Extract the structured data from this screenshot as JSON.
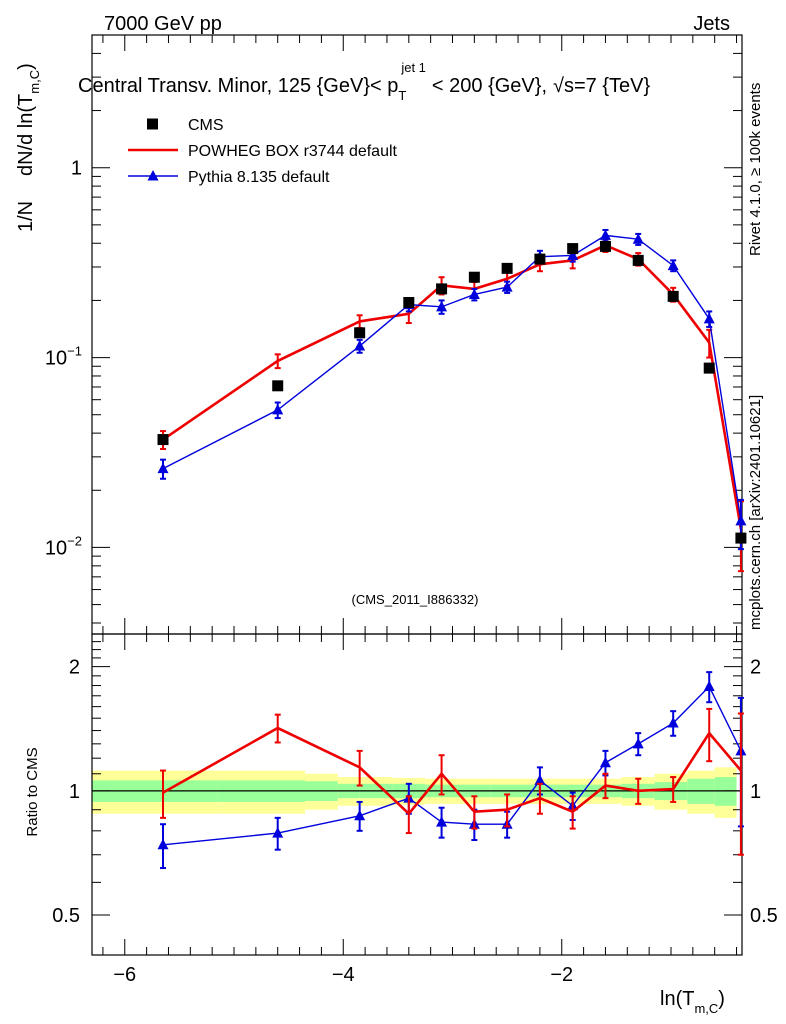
{
  "header": {
    "left": "7000 GeV pp",
    "right": "Jets",
    "title": "Central Transv. Minor, 125 {GeV}< p_T^{jet 1} < 200 {GeV}, √s=7 {TeV}",
    "title_parts": {
      "main_a": "Central Transv. Minor, 125 {GeV}< p",
      "sup": "jet 1",
      "sub": "T",
      "main_b": "< 200 {GeV},",
      "sqrt": "√",
      "main_c": "s=7 {TeV}"
    }
  },
  "side_labels": {
    "rivet": "Rivet 4.1.0, ≥ 100k events",
    "mcplots": "mcplots.cern.ch [arXiv:2401.10621]"
  },
  "watermark": "(CMS_2011_I886332)",
  "axis_labels": {
    "y_main_prefix": "1/N",
    "y_main_d": "dN/d ln(T",
    "y_main_sub": "m,C",
    "y_main_close": ")",
    "y_ratio": "Ratio to CMS",
    "x_main": "ln(T",
    "x_sub": "m,C",
    "x_close": ")"
  },
  "chart_data": [
    {
      "type": "scatter",
      "panel": "main",
      "yscale": "log",
      "xlim": [
        -6.3,
        -0.35
      ],
      "ylim": [
        0.0035,
        5.0
      ],
      "x_ticks": [
        -6,
        -4,
        -2
      ],
      "x_tick_labels": [
        "−6",
        "−4",
        "−2"
      ],
      "y_major_ticks": [
        0.01,
        0.1,
        1
      ],
      "y_tick_labels": [
        {
          "base": "10",
          "exp": "−2"
        },
        {
          "base": "10",
          "exp": "−1"
        },
        {
          "base": "1",
          "exp": ""
        }
      ],
      "legend": [
        "CMS",
        "POWHEG BOX r3744 default",
        "Pythia 8.135 default"
      ],
      "legend_position": "top-left",
      "x": [
        -5.65,
        -4.6,
        -3.85,
        -3.4,
        -3.1,
        -2.8,
        -2.5,
        -2.2,
        -1.9,
        -1.6,
        -1.3,
        -0.98,
        -0.65,
        -0.36
      ],
      "series": [
        {
          "name": "CMS",
          "color": "#000000",
          "values": [
            0.037,
            0.071,
            0.135,
            0.195,
            0.23,
            0.265,
            0.295,
            0.33,
            0.375,
            0.385,
            0.325,
            0.21,
            0.088,
            0.0112
          ]
        },
        {
          "name": "POWHEG BOX r3744 default",
          "color": "#ee0000",
          "values": [
            0.037,
            0.096,
            0.155,
            0.17,
            0.24,
            0.23,
            0.26,
            0.31,
            0.325,
            0.39,
            0.33,
            0.215,
            0.12,
            0.0125
          ],
          "err": [
            0.004,
            0.008,
            0.012,
            0.018,
            0.025,
            0.02,
            0.022,
            0.025,
            0.03,
            0.03,
            0.025,
            0.018,
            0.02,
            0.005
          ]
        },
        {
          "name": "Pythia 8.135 default",
          "color": "#0000dd",
          "values": [
            0.026,
            0.053,
            0.115,
            0.19,
            0.185,
            0.215,
            0.235,
            0.34,
            0.345,
            0.44,
            0.42,
            0.305,
            0.16,
            0.0138
          ],
          "err": [
            0.003,
            0.005,
            0.009,
            0.015,
            0.015,
            0.015,
            0.016,
            0.025,
            0.025,
            0.03,
            0.028,
            0.02,
            0.015,
            0.004
          ]
        }
      ]
    },
    {
      "type": "line",
      "panel": "ratio",
      "yscale": "log",
      "ylabel": "Ratio to CMS",
      "xlabel": "ln(T_m,C)",
      "ylim": [
        0.4,
        2.4
      ],
      "y_ticks": [
        0.5,
        1,
        2
      ],
      "y_tick_labels": [
        "0.5",
        "1",
        "2"
      ],
      "x": [
        -5.65,
        -4.6,
        -3.85,
        -3.4,
        -3.1,
        -2.8,
        -2.5,
        -2.2,
        -1.9,
        -1.6,
        -1.3,
        -0.98,
        -0.65,
        -0.36
      ],
      "band_edges": [
        -6.3,
        -5.15,
        -4.35,
        -4.05,
        -3.85,
        -3.55,
        -3.25,
        -2.95,
        -2.65,
        -2.35,
        -2.05,
        -1.75,
        -1.45,
        -1.15,
        -0.85,
        -0.6,
        -0.4
      ],
      "band_inner": [
        0.06,
        0.06,
        0.055,
        0.04,
        0.04,
        0.04,
        0.035,
        0.035,
        0.035,
        0.035,
        0.035,
        0.035,
        0.04,
        0.05,
        0.07,
        0.08
      ],
      "band_outer": [
        0.12,
        0.12,
        0.1,
        0.08,
        0.08,
        0.075,
        0.07,
        0.07,
        0.07,
        0.07,
        0.07,
        0.07,
        0.08,
        0.1,
        0.12,
        0.14
      ],
      "series": [
        {
          "name": "POWHEG BOX r3744 default",
          "color": "#ee0000",
          "values": [
            0.99,
            1.42,
            1.14,
            0.88,
            1.1,
            0.89,
            0.9,
            0.96,
            0.89,
            1.03,
            1.0,
            1.01,
            1.38,
            1.12
          ],
          "err": [
            0.13,
            0.11,
            0.11,
            0.09,
            0.12,
            0.08,
            0.08,
            0.08,
            0.08,
            0.07,
            0.07,
            0.07,
            0.2,
            0.42
          ]
        },
        {
          "name": "Pythia 8.135 default",
          "color": "#0000dd",
          "values": [
            0.74,
            0.79,
            0.87,
            0.96,
            0.84,
            0.83,
            0.83,
            1.06,
            0.92,
            1.17,
            1.3,
            1.46,
            1.79,
            1.25
          ],
          "err": [
            0.09,
            0.07,
            0.07,
            0.08,
            0.07,
            0.07,
            0.06,
            0.08,
            0.07,
            0.08,
            0.08,
            0.1,
            0.15,
            0.43
          ]
        }
      ]
    }
  ]
}
